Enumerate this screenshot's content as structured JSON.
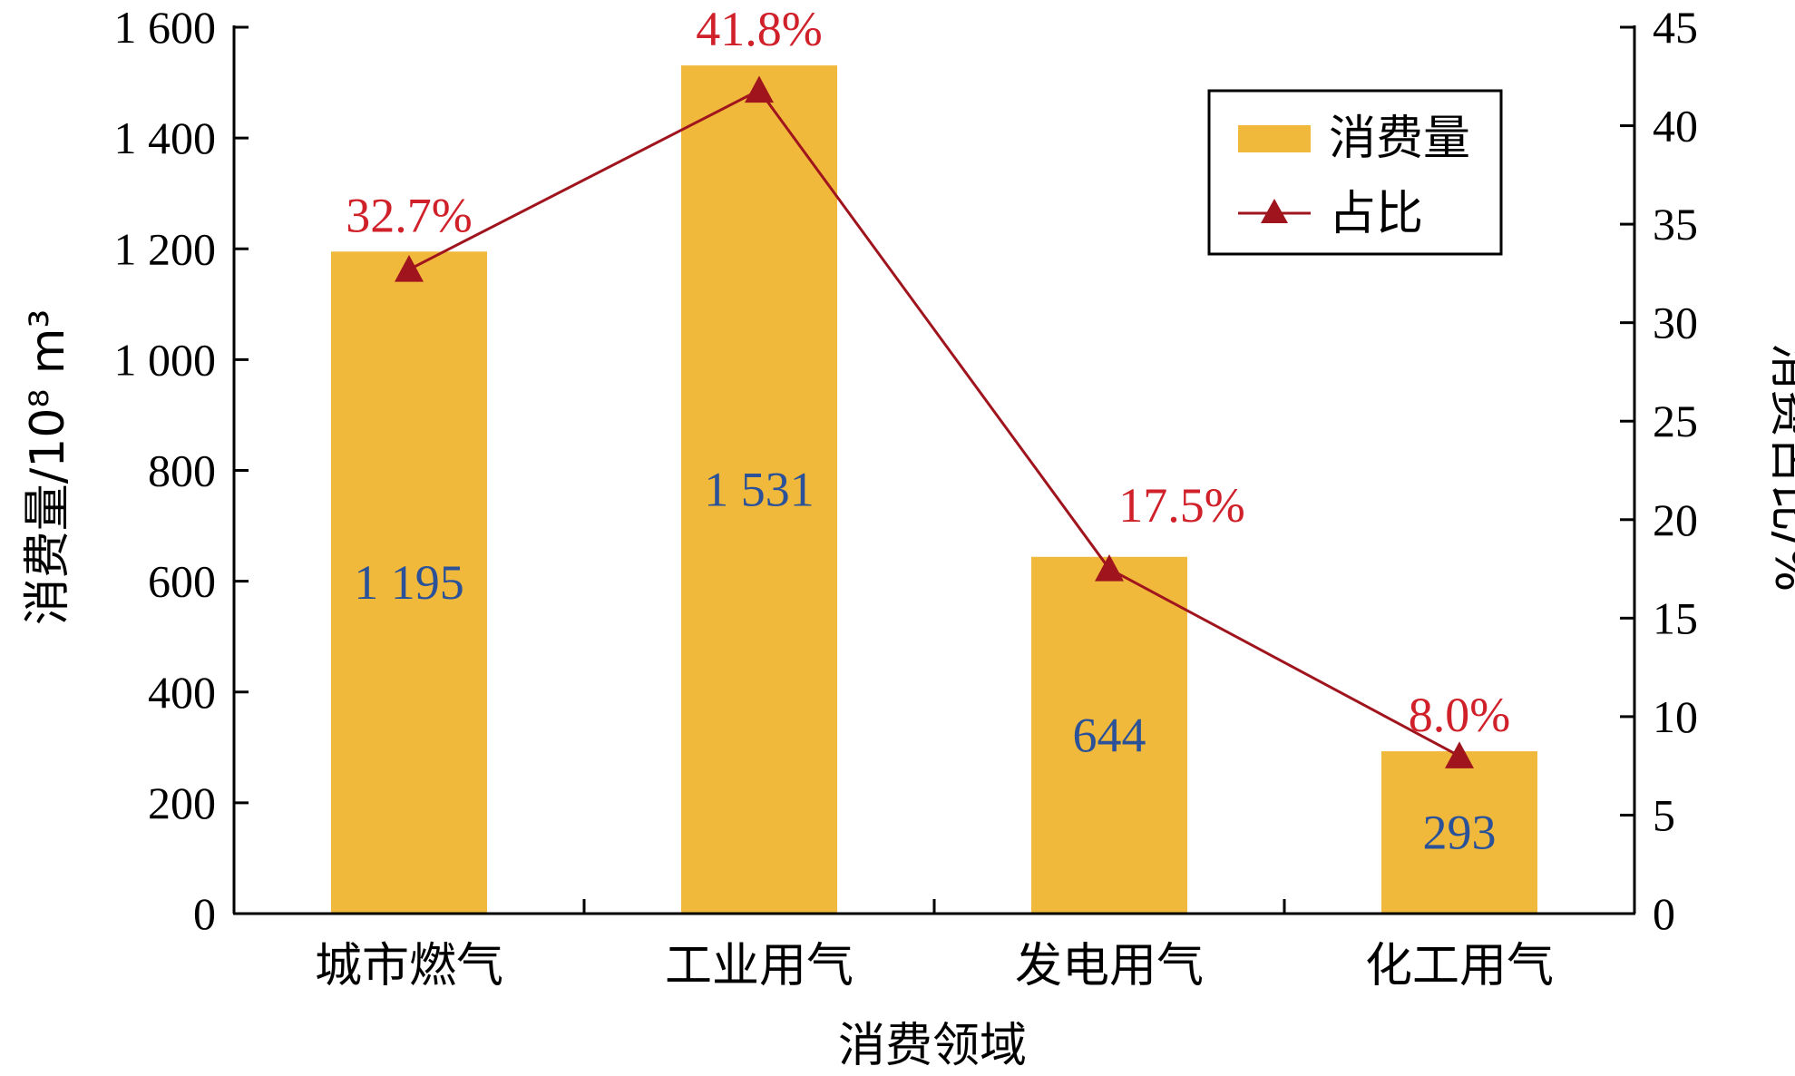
{
  "chart_data": {
    "type": "bar",
    "categories": [
      "城市燃气",
      "工业用气",
      "发电用气",
      "化工用气"
    ],
    "series": [
      {
        "name": "消费量",
        "type": "bar",
        "axis": "left",
        "values": [
          1195,
          1531,
          644,
          293
        ],
        "labels": [
          "1 195",
          "1 531",
          "644",
          "293"
        ],
        "color": "#F0B93B",
        "label_color": "#2B5299"
      },
      {
        "name": "占比",
        "type": "line",
        "axis": "right",
        "values": [
          32.7,
          41.8,
          17.5,
          8.0
        ],
        "labels": [
          "32.7%",
          "41.8%",
          "17.5%",
          "8.0%"
        ],
        "color": "#A0141E",
        "label_color": "#D0202A",
        "marker": "triangle"
      }
    ],
    "xlabel": "消费领域",
    "ylabel_left": "消费量/10⁸ m³",
    "ylabel_right": "消费占比/%",
    "ylim_left": [
      0,
      1600
    ],
    "ylim_right": [
      0,
      45
    ],
    "yticks_left": [
      0,
      200,
      400,
      600,
      800,
      1000,
      1200,
      1400,
      1600
    ],
    "yticks_left_labels": [
      "0",
      "200",
      "400",
      "600",
      "800",
      "1 000",
      "1 200",
      "1 400",
      "1 600"
    ],
    "yticks_right": [
      0,
      5,
      10,
      15,
      20,
      25,
      30,
      35,
      40,
      45
    ],
    "yticks_right_labels": [
      "0",
      "5",
      "10",
      "15",
      "20",
      "25",
      "30",
      "35",
      "40",
      "45"
    ],
    "legend": {
      "position": "top-right",
      "entries": [
        "消费量",
        "占比"
      ]
    },
    "grid": false
  }
}
